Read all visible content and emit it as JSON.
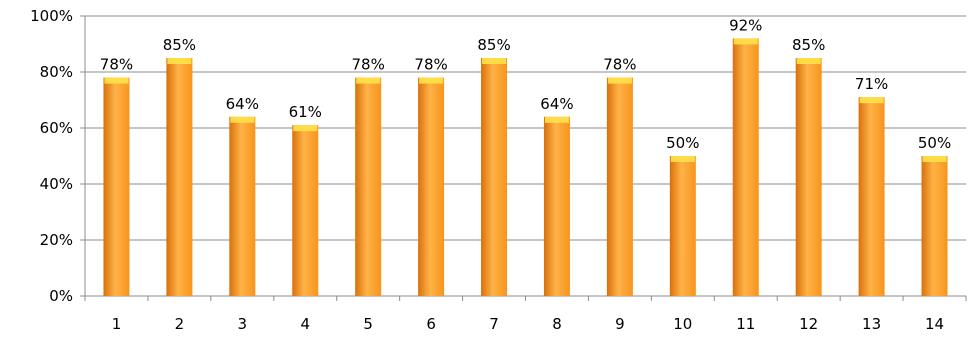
{
  "chart_data": {
    "type": "bar",
    "categories": [
      "1",
      "2",
      "3",
      "4",
      "5",
      "6",
      "7",
      "8",
      "9",
      "10",
      "11",
      "12",
      "13",
      "14"
    ],
    "values": [
      78,
      85,
      64,
      61,
      78,
      78,
      85,
      64,
      78,
      50,
      92,
      85,
      71,
      50
    ],
    "data_labels": [
      "78%",
      "85%",
      "64%",
      "61%",
      "78%",
      "78%",
      "85%",
      "64%",
      "78%",
      "50%",
      "92%",
      "85%",
      "71%",
      "50%"
    ],
    "y_ticks": [
      0,
      20,
      40,
      60,
      80,
      100
    ],
    "y_tick_labels": [
      "0%",
      "20%",
      "40%",
      "60%",
      "80%",
      "100%"
    ],
    "ylim": [
      0,
      100
    ],
    "title": "",
    "xlabel": "",
    "ylabel": "",
    "grid": true,
    "legend": "none",
    "colors": {
      "bar_light": "#ffb347",
      "bar_mid": "#f7941d",
      "bar_dark": "#d9700b",
      "bar_cap": "#ffe24a",
      "gridline": "#8c8c8c",
      "axis": "#8c8c8c"
    }
  }
}
